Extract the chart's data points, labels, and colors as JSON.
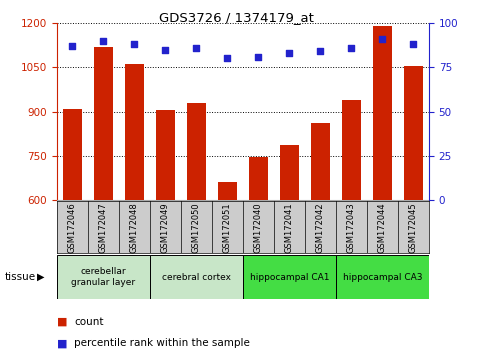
{
  "title": "GDS3726 / 1374179_at",
  "samples": [
    "GSM172046",
    "GSM172047",
    "GSM172048",
    "GSM172049",
    "GSM172050",
    "GSM172051",
    "GSM172040",
    "GSM172041",
    "GSM172042",
    "GSM172043",
    "GSM172044",
    "GSM172045"
  ],
  "counts": [
    910,
    1120,
    1060,
    905,
    930,
    660,
    745,
    785,
    860,
    940,
    1190,
    1055
  ],
  "percentiles": [
    87,
    90,
    88,
    85,
    86,
    80,
    81,
    83,
    84,
    86,
    91,
    88
  ],
  "ylim_left": [
    600,
    1200
  ],
  "ylim_right": [
    0,
    100
  ],
  "yticks_left": [
    600,
    750,
    900,
    1050,
    1200
  ],
  "yticks_right": [
    0,
    25,
    50,
    75,
    100
  ],
  "groups": [
    {
      "label": "cerebellar\ngranular layer",
      "start": 0,
      "end": 3,
      "color": "#c8e6c8"
    },
    {
      "label": "cerebral cortex",
      "start": 3,
      "end": 6,
      "color": "#c8e6c8"
    },
    {
      "label": "hippocampal CA1",
      "start": 6,
      "end": 9,
      "color": "#44dd44"
    },
    {
      "label": "hippocampal CA3",
      "start": 9,
      "end": 12,
      "color": "#44dd44"
    }
  ],
  "bar_color": "#cc2200",
  "dot_color": "#2222cc",
  "axis_color_left": "#cc2200",
  "axis_color_right": "#2222cc",
  "background_color": "#ffffff",
  "legend_count_color": "#cc2200",
  "legend_pct_color": "#2222cc",
  "sample_bg_color": "#cccccc",
  "group_border_color": "#000000"
}
